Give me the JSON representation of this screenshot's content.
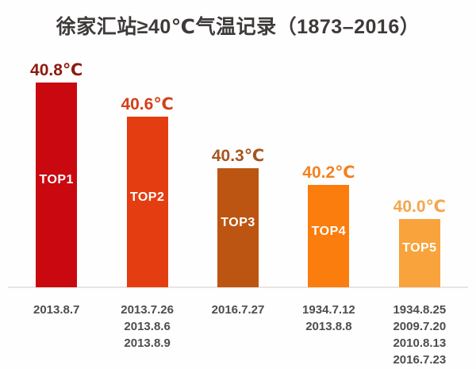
{
  "title": "徐家汇站≥40℃气温记录（1873–2016）",
  "chart_data": {
    "type": "bar",
    "title": "徐家汇站≥40℃气温记录（1873–2016）",
    "xlabel": "",
    "ylabel": "",
    "unit": "℃",
    "legend": false,
    "grid": false,
    "y_baseline": 39.6,
    "ylim": [
      39.6,
      40.9
    ],
    "categories": [
      "TOP1",
      "TOP2",
      "TOP3",
      "TOP4",
      "TOP5"
    ],
    "values": [
      40.8,
      40.6,
      40.3,
      40.2,
      40.0
    ],
    "value_labels": [
      "40.8℃",
      "40.6℃",
      "40.3℃",
      "40.2℃",
      "40.0℃"
    ],
    "bar_colors": [
      "#c9080f",
      "#e53d12",
      "#bc5511",
      "#fa7d0d",
      "#f8a33c"
    ],
    "value_label_colors": [
      "#8e1a10",
      "#d24018",
      "#a5551e",
      "#f58020",
      "#f6a54a"
    ],
    "dates": [
      [
        "2013.8.7"
      ],
      [
        "2013.7.26",
        "2013.8.6",
        "2013.8.9"
      ],
      [
        "2016.7.27"
      ],
      [
        "1934.7.12",
        "2013.8.8"
      ],
      [
        "1934.8.25",
        "2009.7.20",
        "2010.8.13",
        "2016.7.23"
      ]
    ]
  },
  "colors": {
    "title_text": "#3e3a39",
    "date_text": "#4d4d4f",
    "baseline": "#e9e4e0",
    "background": "#fefefe"
  }
}
